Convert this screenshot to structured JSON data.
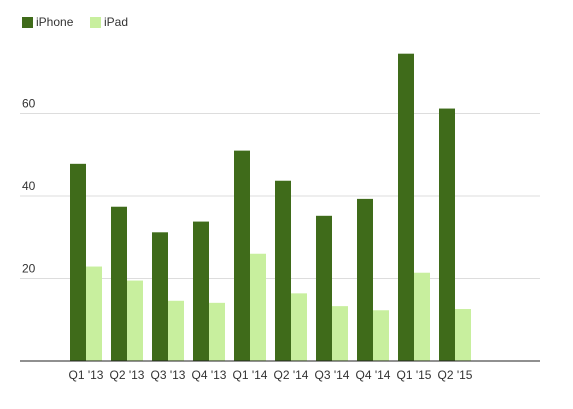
{
  "chart_data": {
    "type": "bar",
    "categories": [
      "Q1 '13",
      "Q2 '13",
      "Q3 '13",
      "Q4 '13",
      "Q1 '14",
      "Q2 '14",
      "Q3 '14",
      "Q4 '14",
      "Q1 '15",
      "Q2 '15"
    ],
    "series": [
      {
        "name": "iPhone",
        "color": "#3f6b1a",
        "values": [
          47.8,
          37.4,
          31.2,
          33.8,
          51.0,
          43.7,
          35.2,
          39.3,
          74.5,
          61.2
        ]
      },
      {
        "name": "iPad",
        "color": "#c8ef9e",
        "values": [
          22.9,
          19.5,
          14.6,
          14.1,
          26.0,
          16.4,
          13.3,
          12.3,
          21.4,
          12.6
        ]
      }
    ],
    "ylim": [
      0,
      80
    ],
    "yticks": [
      20,
      40,
      60
    ],
    "grid": true
  }
}
